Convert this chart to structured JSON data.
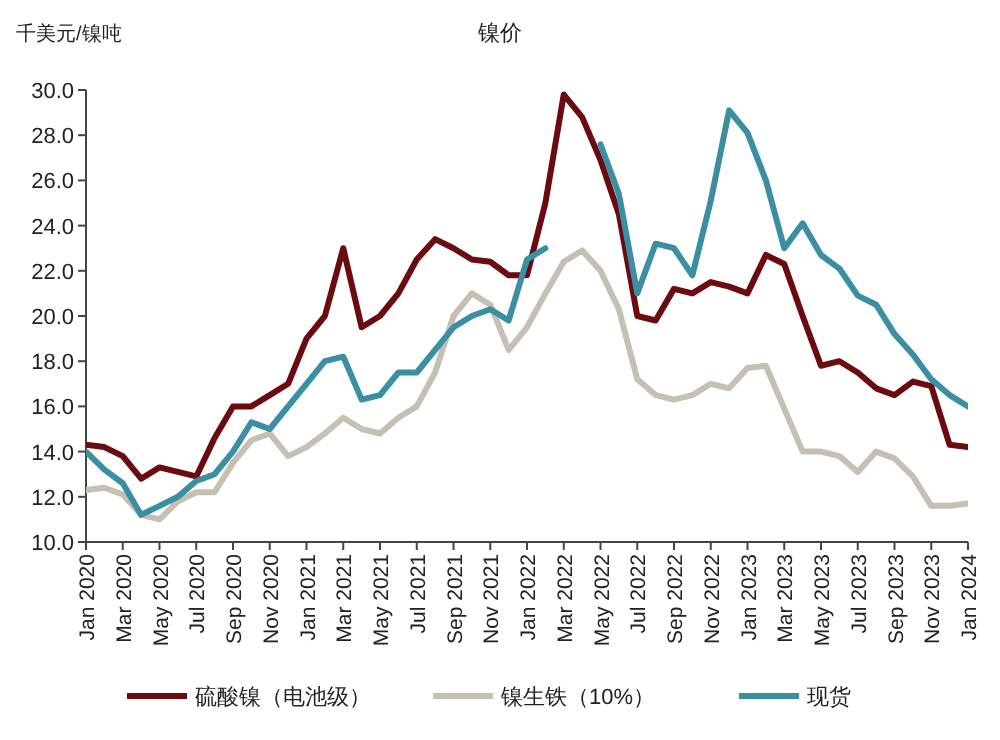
{
  "chart_data": {
    "type": "line",
    "title": "镍价",
    "ylabel": "千美元/镍吨",
    "x": [
      "2020-01",
      "2020-02",
      "2020-03",
      "2020-04",
      "2020-05",
      "2020-06",
      "2020-07",
      "2020-08",
      "2020-09",
      "2020-10",
      "2020-11",
      "2020-12",
      "2021-01",
      "2021-02",
      "2021-03",
      "2021-04",
      "2021-05",
      "2021-06",
      "2021-07",
      "2021-08",
      "2021-09",
      "2021-10",
      "2021-11",
      "2021-12",
      "2022-01",
      "2022-02",
      "2022-03",
      "2022-04",
      "2022-05",
      "2022-06",
      "2022-07",
      "2022-08",
      "2022-09",
      "2022-10",
      "2022-11",
      "2022-12",
      "2023-01",
      "2023-02",
      "2023-03",
      "2023-04",
      "2023-05",
      "2023-06",
      "2023-07",
      "2023-08",
      "2023-09",
      "2023-10",
      "2023-11",
      "2023-12",
      "2024-01"
    ],
    "series": [
      {
        "name": "硫酸镍（电池级）",
        "color": "#6b0a0f",
        "values": [
          14.3,
          14.2,
          13.8,
          12.8,
          13.3,
          13.1,
          12.9,
          14.6,
          16.0,
          16.0,
          16.5,
          17.0,
          19.0,
          20.0,
          23.0,
          19.5,
          20.0,
          21.0,
          22.5,
          23.4,
          23.0,
          22.5,
          22.4,
          21.8,
          21.8,
          25.0,
          29.8,
          28.8,
          26.9,
          24.5,
          20.0,
          19.8,
          21.2,
          21.0,
          21.5,
          21.3,
          21.0,
          22.7,
          22.3,
          20.0,
          17.8,
          18.0,
          17.5,
          16.8,
          16.5,
          17.1,
          16.9,
          14.3,
          14.2
        ]
      },
      {
        "name": "镍生铁（10%）",
        "color": "#c4c1b3",
        "values": [
          12.3,
          12.4,
          12.1,
          11.2,
          11.0,
          11.8,
          12.2,
          12.2,
          13.5,
          14.5,
          14.8,
          13.8,
          14.2,
          14.8,
          15.5,
          15.0,
          14.8,
          15.5,
          16.0,
          17.5,
          20.0,
          21.0,
          20.5,
          18.5,
          19.5,
          21.0,
          22.4,
          22.9,
          22.0,
          20.3,
          17.2,
          16.5,
          16.3,
          16.5,
          17.0,
          16.8,
          17.7,
          17.8,
          15.9,
          14.0,
          14.0,
          13.8,
          13.1,
          14.0,
          13.7,
          12.9,
          11.6,
          11.6,
          11.7
        ]
      },
      {
        "name": "现货",
        "color": "#3a8fa3",
        "values": [
          14.0,
          13.2,
          12.6,
          11.2,
          11.6,
          12.0,
          12.7,
          13.0,
          14.0,
          15.3,
          15.0,
          16.0,
          17.0,
          18.0,
          18.2,
          16.3,
          16.5,
          17.5,
          17.5,
          18.5,
          19.5,
          20.0,
          20.3,
          19.8,
          22.5,
          23.0,
          null,
          null,
          27.6,
          25.4,
          21.0,
          23.2,
          23.0,
          21.8,
          25.1,
          29.1,
          28.1,
          26.0,
          23.0,
          24.1,
          22.7,
          22.1,
          20.9,
          20.5,
          19.2,
          18.3,
          17.2,
          16.5,
          16.0
        ]
      }
    ],
    "xlim": [
      "2020-01",
      "2024-01"
    ],
    "xticks": [
      {
        "value": "2020-01",
        "label": "Jan 2020"
      },
      {
        "value": "2020-03",
        "label": "Mar 2020"
      },
      {
        "value": "2020-05",
        "label": "May 2020"
      },
      {
        "value": "2020-07",
        "label": "Jul 2020"
      },
      {
        "value": "2020-09",
        "label": "Sep 2020"
      },
      {
        "value": "2020-11",
        "label": "Nov 2020"
      },
      {
        "value": "2021-01",
        "label": "Jan 2021"
      },
      {
        "value": "2021-03",
        "label": "Mar 2021"
      },
      {
        "value": "2021-05",
        "label": "May 2021"
      },
      {
        "value": "2021-07",
        "label": "Jul 2021"
      },
      {
        "value": "2021-09",
        "label": "Sep 2021"
      },
      {
        "value": "2021-11",
        "label": "Nov 2021"
      },
      {
        "value": "2022-01",
        "label": "Jan 2022"
      },
      {
        "value": "2022-03",
        "label": "Mar 2022"
      },
      {
        "value": "2022-05",
        "label": "May 2022"
      },
      {
        "value": "2022-07",
        "label": "Jul 2022"
      },
      {
        "value": "2022-09",
        "label": "Sep 2022"
      },
      {
        "value": "2022-11",
        "label": "Nov 2022"
      },
      {
        "value": "2023-01",
        "label": "Jan 2023"
      },
      {
        "value": "2023-03",
        "label": "Mar 2023"
      },
      {
        "value": "2023-05",
        "label": "May 2023"
      },
      {
        "value": "2023-07",
        "label": "Jul 2023"
      },
      {
        "value": "2023-09",
        "label": "Sep 2023"
      },
      {
        "value": "2023-11",
        "label": "Nov 2023"
      },
      {
        "value": "2024-01",
        "label": "Jan 2024"
      }
    ],
    "ylim": [
      10,
      30
    ],
    "yticks": [
      {
        "value": 10,
        "label": "10.0"
      },
      {
        "value": 12,
        "label": "12.0"
      },
      {
        "value": 14,
        "label": "14.0"
      },
      {
        "value": 16,
        "label": "16.0"
      },
      {
        "value": 18,
        "label": "18.0"
      },
      {
        "value": 20,
        "label": "20.0"
      },
      {
        "value": 22,
        "label": "22.0"
      },
      {
        "value": 24,
        "label": "24.0"
      },
      {
        "value": 26,
        "label": "26.0"
      },
      {
        "value": 28,
        "label": "28.0"
      },
      {
        "value": 30,
        "label": "30.0"
      }
    ],
    "legend": "bottom"
  }
}
